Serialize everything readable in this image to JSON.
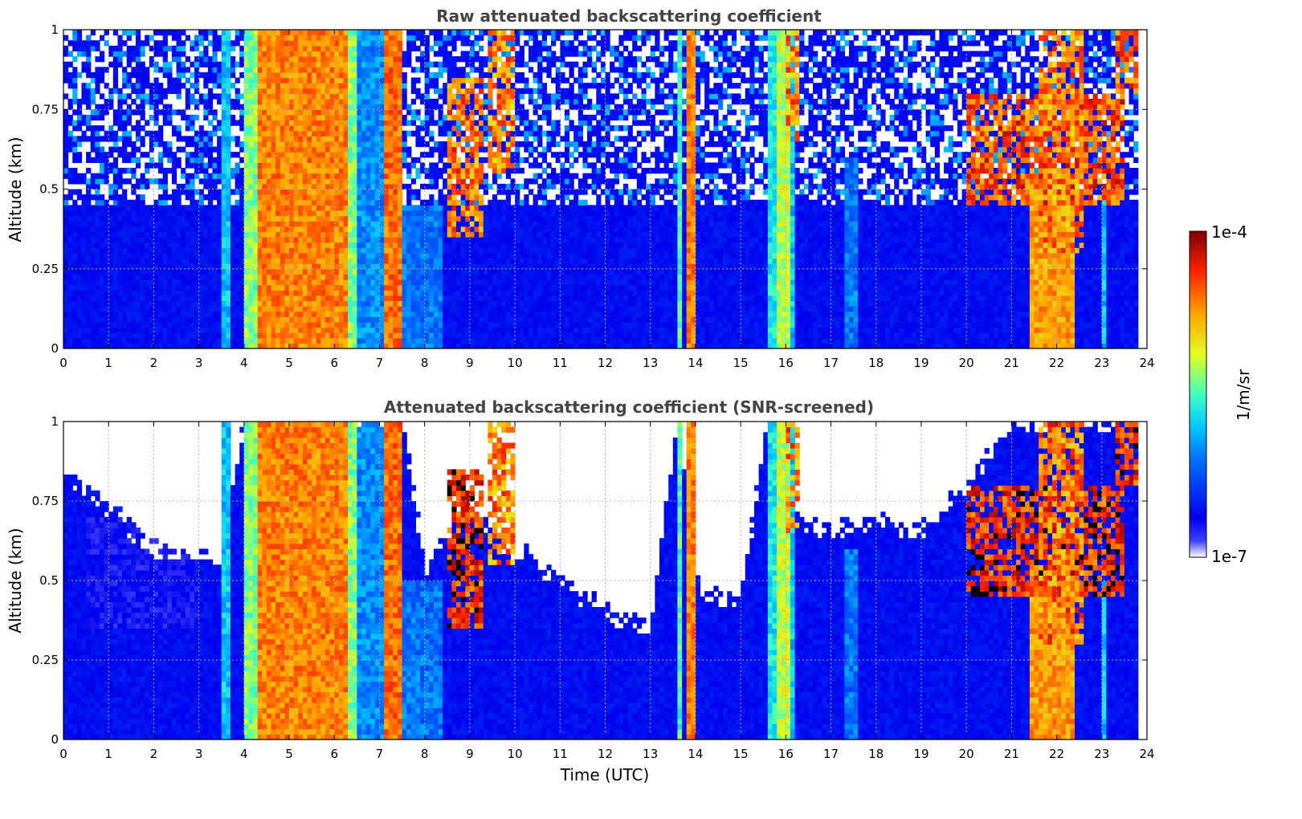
{
  "chart_data": [
    {
      "type": "heatmap",
      "title": "Raw attenuated backscattering coefficient",
      "xlabel": "",
      "ylabel": "Altitude (km)",
      "xlim": [
        0,
        24
      ],
      "ylim": [
        0,
        1
      ],
      "xticks": [
        "0",
        "1",
        "2",
        "3",
        "4",
        "5",
        "6",
        "7",
        "8",
        "9",
        "10",
        "11",
        "12",
        "13",
        "14",
        "15",
        "16",
        "17",
        "18",
        "19",
        "20",
        "21",
        "22",
        "23",
        "24"
      ],
      "yticks": [
        "0",
        "0.25",
        "0.5",
        "0.75",
        "1"
      ],
      "grid": true,
      "noise_above_km": 0.45,
      "screened": false,
      "features": [
        {
          "kind": "background",
          "t0": 0,
          "t1": 23.8,
          "z0": 0,
          "z1": 0.45,
          "level": 0.14
        },
        {
          "kind": "column",
          "t0": 3.5,
          "t1": 3.7,
          "z0": 0,
          "z1": 1,
          "level": 0.4
        },
        {
          "kind": "column",
          "t0": 4.0,
          "t1": 4.3,
          "z0": 0,
          "z1": 1,
          "level": 0.55
        },
        {
          "kind": "column",
          "t0": 4.3,
          "t1": 6.3,
          "z0": 0,
          "z1": 1,
          "level": 0.78
        },
        {
          "kind": "column",
          "t0": 6.3,
          "t1": 6.5,
          "z0": 0,
          "z1": 1,
          "level": 0.55
        },
        {
          "kind": "column",
          "t0": 6.5,
          "t1": 7.1,
          "z0": 0,
          "z1": 1,
          "level": 0.33
        },
        {
          "kind": "column",
          "t0": 7.1,
          "t1": 7.5,
          "z0": 0,
          "z1": 1,
          "level": 0.8
        },
        {
          "kind": "column",
          "t0": 7.5,
          "t1": 8.4,
          "z0": 0,
          "z1": 0.45,
          "level": 0.3
        },
        {
          "kind": "column",
          "t0": 13.6,
          "t1": 13.7,
          "z0": 0,
          "z1": 1,
          "level": 0.5
        },
        {
          "kind": "column",
          "t0": 13.75,
          "t1": 14.0,
          "z0": 0,
          "z1": 1,
          "level": 0.78
        },
        {
          "kind": "column",
          "t0": 15.6,
          "t1": 15.8,
          "z0": 0,
          "z1": 1,
          "level": 0.45
        },
        {
          "kind": "column",
          "t0": 15.8,
          "t1": 16.1,
          "z0": 0,
          "z1": 1,
          "level": 0.6
        },
        {
          "kind": "column",
          "t0": 16.1,
          "t1": 16.2,
          "z0": 0,
          "z1": 1,
          "level": 0.4
        },
        {
          "kind": "column",
          "t0": 17.3,
          "t1": 17.6,
          "z0": 0,
          "z1": 0.6,
          "level": 0.3
        },
        {
          "kind": "column",
          "t0": 21.4,
          "t1": 22.4,
          "z0": 0,
          "z1": 0.55,
          "level": 0.75
        },
        {
          "kind": "column",
          "t0": 23.0,
          "t1": 23.15,
          "z0": 0,
          "z1": 0.5,
          "level": 0.4
        },
        {
          "kind": "cloud",
          "t0": 8.5,
          "t1": 9.3,
          "z0": 0.35,
          "z1": 0.85,
          "level": 0.92
        },
        {
          "kind": "cloud",
          "t0": 9.4,
          "t1": 10.0,
          "z0": 0.55,
          "z1": 1,
          "level": 0.9
        },
        {
          "kind": "cloud",
          "t0": 16.0,
          "t1": 16.3,
          "z0": 0.65,
          "z1": 1,
          "level": 0.9
        },
        {
          "kind": "cloud",
          "t0": 20.0,
          "t1": 23.5,
          "z0": 0.45,
          "z1": 0.8,
          "level": 0.95
        },
        {
          "kind": "cloud",
          "t0": 21.6,
          "t1": 22.6,
          "z0": 0.3,
          "z1": 1,
          "level": 0.9
        },
        {
          "kind": "cloud",
          "t0": 23.3,
          "t1": 23.8,
          "z0": 0.8,
          "z1": 1,
          "level": 0.95
        }
      ]
    },
    {
      "type": "heatmap",
      "title": "Attenuated backscattering coefficient (SNR-screened)",
      "xlabel": "Time (UTC)",
      "ylabel": "Altitude (km)",
      "xlim": [
        0,
        24
      ],
      "ylim": [
        0,
        1
      ],
      "xticks": [
        "0",
        "1",
        "2",
        "3",
        "4",
        "5",
        "6",
        "7",
        "8",
        "9",
        "10",
        "11",
        "12",
        "13",
        "14",
        "15",
        "16",
        "17",
        "18",
        "19",
        "20",
        "21",
        "22",
        "23",
        "24"
      ],
      "yticks": [
        "0",
        "0.25",
        "0.5",
        "0.75",
        "1"
      ],
      "grid": true,
      "screened": true,
      "signal_top_km": [
        {
          "t": 0,
          "z": 0.85
        },
        {
          "t": 2,
          "z": 0.6
        },
        {
          "t": 3.5,
          "z": 0.55
        },
        {
          "t": 4,
          "z": 1
        },
        {
          "t": 7.5,
          "z": 1
        },
        {
          "t": 8,
          "z": 0.55
        },
        {
          "t": 9,
          "z": 0.7
        },
        {
          "t": 10,
          "z": 0.6
        },
        {
          "t": 11,
          "z": 0.5
        },
        {
          "t": 12,
          "z": 0.4
        },
        {
          "t": 13,
          "z": 0.35
        },
        {
          "t": 13.6,
          "z": 1
        },
        {
          "t": 14.1,
          "z": 0.45
        },
        {
          "t": 15,
          "z": 0.45
        },
        {
          "t": 15.6,
          "z": 1
        },
        {
          "t": 16.3,
          "z": 0.7
        },
        {
          "t": 17,
          "z": 0.65
        },
        {
          "t": 18,
          "z": 0.7
        },
        {
          "t": 19,
          "z": 0.65
        },
        {
          "t": 20,
          "z": 0.8
        },
        {
          "t": 21,
          "z": 1
        },
        {
          "t": 23.8,
          "z": 1
        }
      ],
      "features": [
        {
          "kind": "background",
          "t0": 0,
          "t1": 23.8,
          "z0": 0,
          "z1": 1,
          "level": 0.14
        },
        {
          "kind": "haze",
          "t0": 0.5,
          "t1": 3.0,
          "z0": 0.35,
          "z1": 0.7,
          "level": 0.06
        },
        {
          "kind": "column",
          "t0": 3.5,
          "t1": 3.7,
          "z0": 0,
          "z1": 1,
          "level": 0.4
        },
        {
          "kind": "column",
          "t0": 4.0,
          "t1": 4.3,
          "z0": 0,
          "z1": 1,
          "level": 0.55
        },
        {
          "kind": "column",
          "t0": 4.3,
          "t1": 6.3,
          "z0": 0,
          "z1": 1,
          "level": 0.78
        },
        {
          "kind": "column",
          "t0": 6.3,
          "t1": 6.5,
          "z0": 0,
          "z1": 1,
          "level": 0.55
        },
        {
          "kind": "column",
          "t0": 6.5,
          "t1": 7.1,
          "z0": 0,
          "z1": 1,
          "level": 0.33
        },
        {
          "kind": "column",
          "t0": 7.1,
          "t1": 7.5,
          "z0": 0,
          "z1": 1,
          "level": 0.8
        },
        {
          "kind": "column",
          "t0": 7.5,
          "t1": 8.4,
          "z0": 0,
          "z1": 0.5,
          "level": 0.3
        },
        {
          "kind": "column",
          "t0": 13.6,
          "t1": 13.7,
          "z0": 0,
          "z1": 1,
          "level": 0.5
        },
        {
          "kind": "column",
          "t0": 13.75,
          "t1": 14.0,
          "z0": 0,
          "z1": 1,
          "level": 0.78
        },
        {
          "kind": "column",
          "t0": 15.6,
          "t1": 15.8,
          "z0": 0,
          "z1": 1,
          "level": 0.45
        },
        {
          "kind": "column",
          "t0": 15.8,
          "t1": 16.1,
          "z0": 0,
          "z1": 1,
          "level": 0.6
        },
        {
          "kind": "column",
          "t0": 16.1,
          "t1": 16.2,
          "z0": 0,
          "z1": 1,
          "level": 0.4
        },
        {
          "kind": "column",
          "t0": 17.3,
          "t1": 17.6,
          "z0": 0,
          "z1": 0.6,
          "level": 0.3
        },
        {
          "kind": "column",
          "t0": 21.4,
          "t1": 22.4,
          "z0": 0,
          "z1": 0.55,
          "level": 0.75
        },
        {
          "kind": "column",
          "t0": 23.0,
          "t1": 23.15,
          "z0": 0,
          "z1": 0.5,
          "level": 0.4
        },
        {
          "kind": "cloud",
          "t0": 8.5,
          "t1": 9.3,
          "z0": 0.35,
          "z1": 0.85,
          "level": 1.0
        },
        {
          "kind": "cloud",
          "t0": 9.4,
          "t1": 10.0,
          "z0": 0.55,
          "z1": 1,
          "level": 0.9
        },
        {
          "kind": "cloud",
          "t0": 16.0,
          "t1": 16.3,
          "z0": 0.65,
          "z1": 1,
          "level": 0.9
        },
        {
          "kind": "cloud",
          "t0": 20.0,
          "t1": 23.5,
          "z0": 0.45,
          "z1": 0.8,
          "level": 1.0
        },
        {
          "kind": "cloud",
          "t0": 21.6,
          "t1": 22.6,
          "z0": 0.3,
          "z1": 1,
          "level": 0.92
        },
        {
          "kind": "cloud",
          "t0": 23.3,
          "t1": 23.8,
          "z0": 0.8,
          "z1": 1,
          "level": 1.0
        }
      ]
    }
  ],
  "colorbar": {
    "label": "1/m/sr",
    "min_label": "1e-7",
    "max_label": "1e-4",
    "colormap": "jet",
    "scale": "log"
  }
}
